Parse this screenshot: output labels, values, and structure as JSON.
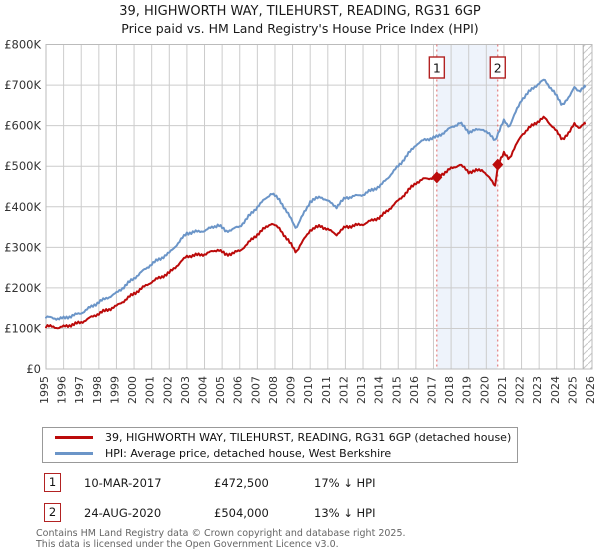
{
  "title": {
    "line1": "39, HIGHWORTH WAY, TILEHURST, READING, RG31 6GP",
    "line2": "Price paid vs. HM Land Registry's House Price Index (HPI)"
  },
  "transactions": [
    {
      "num": "1",
      "date": "10-MAR-2017",
      "price": "£472,500",
      "hpi": "17% ↓ HPI"
    },
    {
      "num": "2",
      "date": "24-AUG-2020",
      "price": "£504,000",
      "hpi": "13% ↓ HPI"
    }
  ],
  "footer": {
    "line1": "Contains HM Land Registry data © Crown copyright and database right 2025.",
    "line2": "This data is licensed under the Open Government Licence v3.0."
  },
  "chart_data": {
    "type": "line",
    "title": "39, HIGHWORTH WAY, TILEHURST, READING, RG31 6GP — Price paid vs. HM Land Registry's House Price Index (HPI)",
    "xlim": [
      1995,
      2026
    ],
    "ylim": [
      0,
      800000
    ],
    "grid": true,
    "x_ticks": [
      1995,
      1996,
      1997,
      1998,
      1999,
      2000,
      2001,
      2002,
      2003,
      2004,
      2005,
      2006,
      2007,
      2008,
      2009,
      2010,
      2011,
      2012,
      2013,
      2014,
      2015,
      2016,
      2017,
      2018,
      2019,
      2020,
      2021,
      2022,
      2023,
      2024,
      2025,
      2026
    ],
    "y_ticks": [
      "£0",
      "£100K",
      "£200K",
      "£300K",
      "£400K",
      "£500K",
      "£600K",
      "£700K",
      "£800K"
    ],
    "colors": {
      "price": "#bb0a0a",
      "hpi": "#6b95c8",
      "marker_line": "#e06666",
      "marker_box": "#b22222",
      "shade": "#eef3fb",
      "grid": "#cccccc",
      "border": "#bbbbbb",
      "hatch": "#c8c8c8"
    },
    "series": [
      {
        "name": "price-paid",
        "label": "39, HIGHWORTH WAY, TILEHURST, READING, RG31 6GP (detached house)",
        "color": "#bb0a0a",
        "points": [
          [
            1995,
            106000
          ],
          [
            1995.7,
            102000
          ],
          [
            1996,
            104000
          ],
          [
            1997,
            115000
          ],
          [
            1998,
            137000
          ],
          [
            1999,
            155000
          ],
          [
            2000,
            186000
          ],
          [
            2001,
            215000
          ],
          [
            2002,
            237000
          ],
          [
            2003,
            278000
          ],
          [
            2004,
            283000
          ],
          [
            2004.8,
            295000
          ],
          [
            2005.2,
            281000
          ],
          [
            2006,
            291000
          ],
          [
            2007,
            332000
          ],
          [
            2007.8,
            360000
          ],
          [
            2008.3,
            344000
          ],
          [
            2009.2,
            289000
          ],
          [
            2010,
            343000
          ],
          [
            2010.6,
            353000
          ],
          [
            2011.5,
            332000
          ],
          [
            2012,
            350000
          ],
          [
            2013,
            357000
          ],
          [
            2014,
            375000
          ],
          [
            2015,
            415000
          ],
          [
            2016,
            459000
          ],
          [
            2016.5,
            469000
          ],
          [
            2017.19,
            472500
          ],
          [
            2018,
            494000
          ],
          [
            2018.5,
            504000
          ],
          [
            2019,
            486000
          ],
          [
            2019.8,
            491000
          ],
          [
            2020.5,
            452000
          ],
          [
            2020.65,
            504000
          ],
          [
            2021,
            531000
          ],
          [
            2021.3,
            519000
          ],
          [
            2022,
            577000
          ],
          [
            2022.7,
            604000
          ],
          [
            2023.3,
            620000
          ],
          [
            2023.8,
            596000
          ],
          [
            2024.3,
            567000
          ],
          [
            2024.7,
            581000
          ],
          [
            2025,
            606000
          ],
          [
            2025.3,
            594000
          ],
          [
            2025.6,
            605000
          ]
        ]
      },
      {
        "name": "hpi",
        "label": "HPI: Average price, detached house, West Berkshire",
        "color": "#6b95c8",
        "points": [
          [
            1995,
            128000
          ],
          [
            1995.7,
            124000
          ],
          [
            1996,
            125000
          ],
          [
            1997,
            138000
          ],
          [
            1998,
            165000
          ],
          [
            1999,
            187000
          ],
          [
            2000,
            224000
          ],
          [
            2001,
            259000
          ],
          [
            2002,
            286000
          ],
          [
            2003,
            335000
          ],
          [
            2004,
            341000
          ],
          [
            2004.8,
            356000
          ],
          [
            2005.2,
            339000
          ],
          [
            2006,
            351000
          ],
          [
            2007,
            400000
          ],
          [
            2007.8,
            434000
          ],
          [
            2008.3,
            415000
          ],
          [
            2009.2,
            348000
          ],
          [
            2010,
            413000
          ],
          [
            2010.6,
            425000
          ],
          [
            2011.5,
            400000
          ],
          [
            2012,
            422000
          ],
          [
            2013,
            430000
          ],
          [
            2014,
            452000
          ],
          [
            2015,
            500000
          ],
          [
            2016,
            553000
          ],
          [
            2016.5,
            565000
          ],
          [
            2017.19,
            572000
          ],
          [
            2018,
            595000
          ],
          [
            2018.5,
            607000
          ],
          [
            2019,
            585000
          ],
          [
            2019.8,
            592000
          ],
          [
            2020.5,
            565000
          ],
          [
            2021,
            612000
          ],
          [
            2021.3,
            598000
          ],
          [
            2022,
            664000
          ],
          [
            2022.7,
            695000
          ],
          [
            2023.3,
            713000
          ],
          [
            2023.8,
            685000
          ],
          [
            2024.3,
            652000
          ],
          [
            2024.7,
            668000
          ],
          [
            2025,
            697000
          ],
          [
            2025.3,
            683000
          ],
          [
            2025.6,
            696000
          ]
        ]
      }
    ],
    "markers": [
      {
        "label": "1",
        "x": 2017.19,
        "y": 472500
      },
      {
        "label": "2",
        "x": 2020.65,
        "y": 504000
      }
    ],
    "shaded_region": [
      2017.19,
      2020.65
    ],
    "hatch_region": [
      2025.5,
      2026
    ],
    "legend_position": "bottom"
  }
}
